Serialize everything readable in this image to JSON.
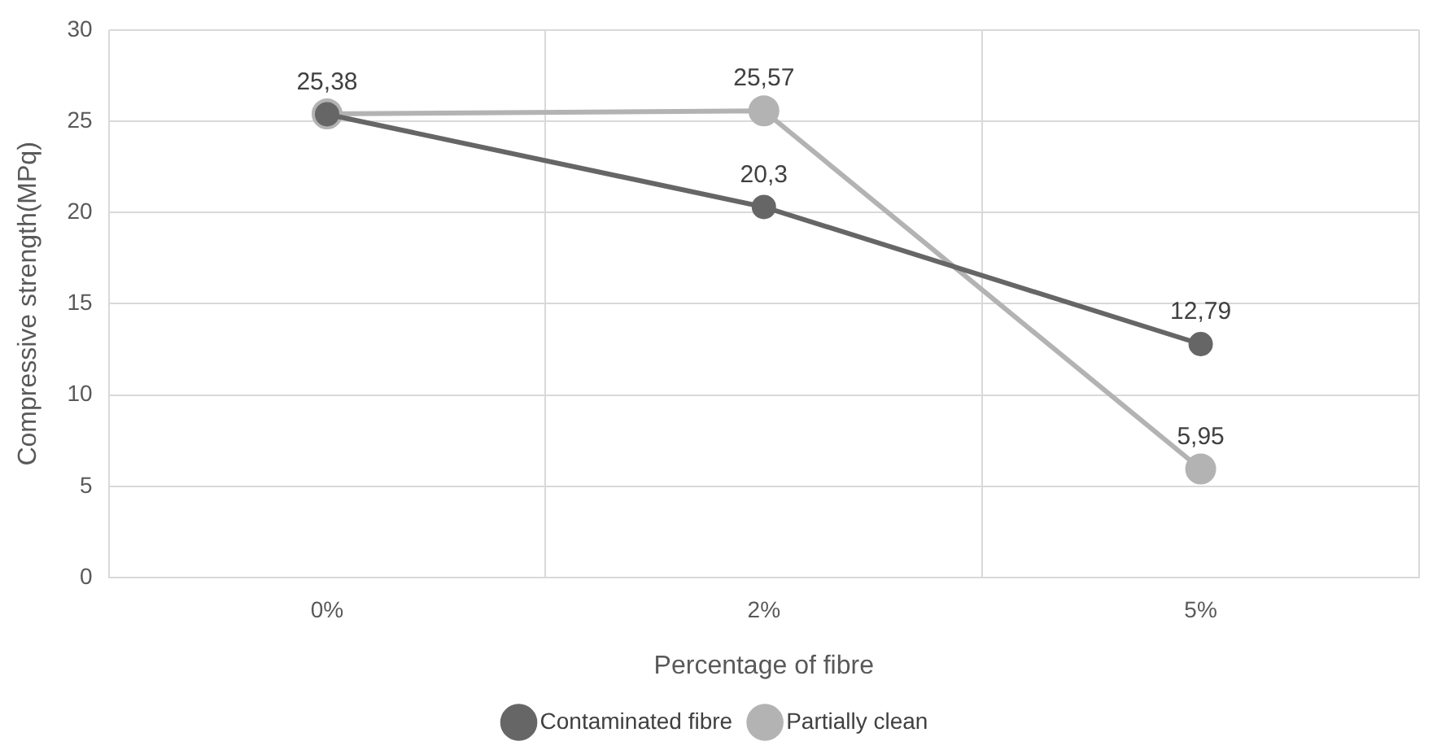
{
  "chart_data": {
    "type": "line",
    "xlabel": "Percentage of fibre",
    "ylabel": "Compressive strength(MPq)",
    "categories": [
      "0%",
      "2%",
      "5%"
    ],
    "series": [
      {
        "name": "Contaminated fibre",
        "color": "#666666",
        "values": [
          25.38,
          20.3,
          12.79
        ],
        "value_labels": [
          "25,38",
          "20,3",
          "12,79"
        ]
      },
      {
        "name": "Partially clean",
        "color": "#b3b3b3",
        "values": [
          25.4,
          25.57,
          5.95
        ],
        "value_labels": [
          null,
          "25,57",
          "5,95"
        ]
      }
    ],
    "ylim": [
      0,
      30
    ],
    "yticks": [
      0,
      5,
      10,
      15,
      20,
      25,
      30
    ],
    "grid": true,
    "legend": "bottom",
    "marker": "circle",
    "line_style": "solid"
  }
}
